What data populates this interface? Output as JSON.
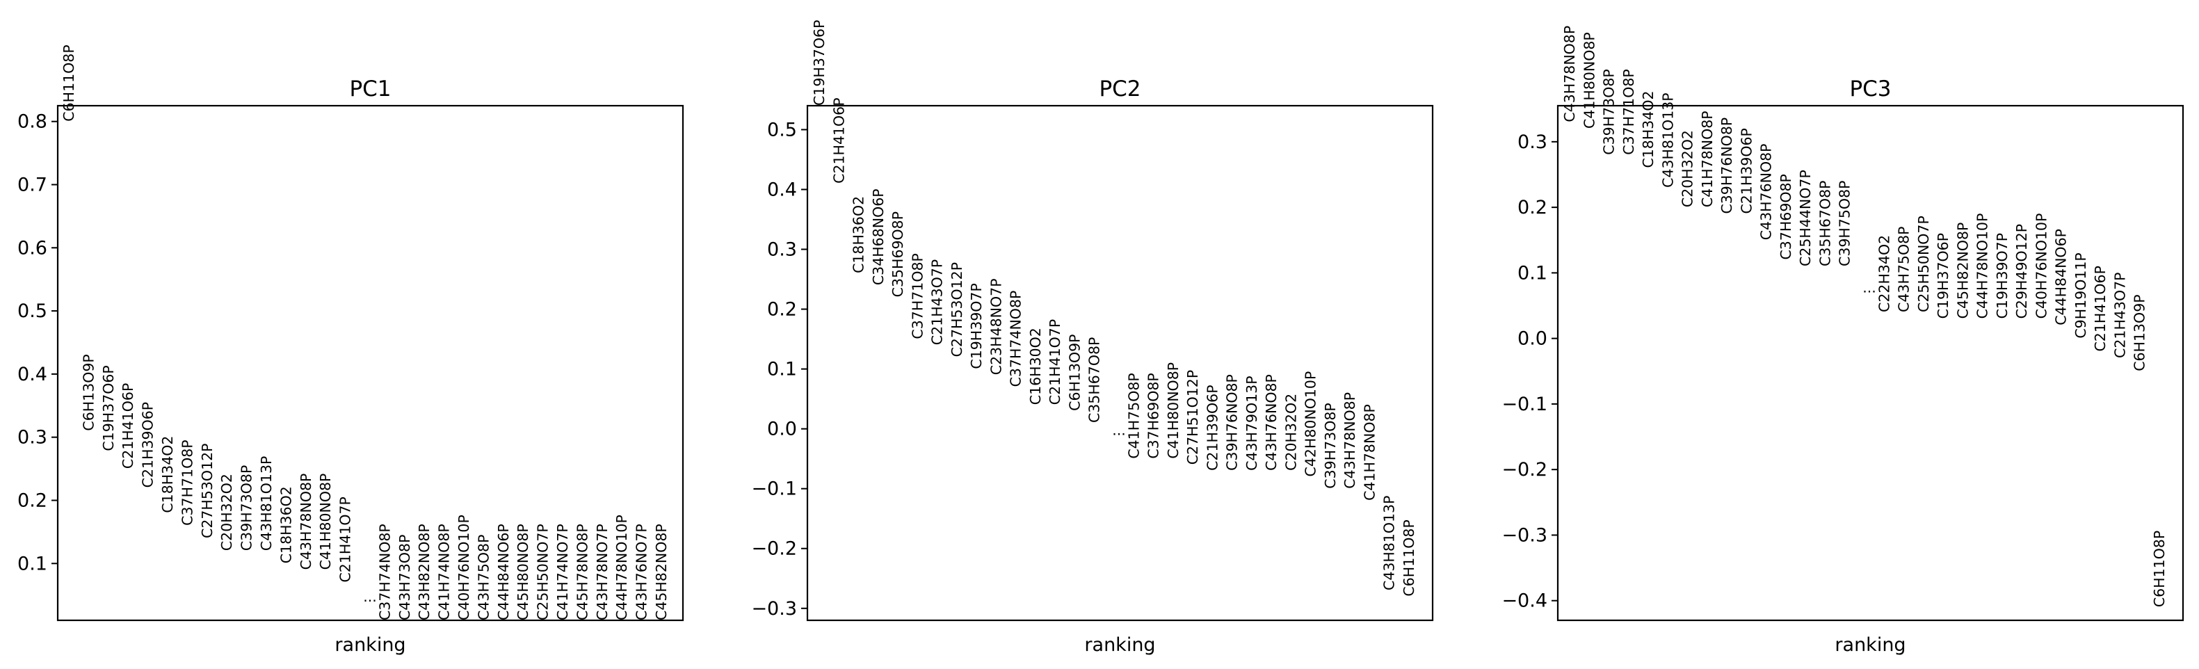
{
  "chart_data": [
    {
      "type": "scatter",
      "title": "PC1",
      "xlabel": "ranking",
      "ylabel": "",
      "ylim": [
        0.01,
        0.825
      ],
      "yticks": [
        0.1,
        0.2,
        0.3,
        0.4,
        0.5,
        0.6,
        0.7,
        0.8
      ],
      "ytick_labels": [
        "0.1",
        "0.2",
        "0.3",
        "0.4",
        "0.5",
        "0.6",
        "0.7",
        "0.8"
      ],
      "ellipsis": "...",
      "ellipsis_y": 0.04,
      "genes": [
        {
          "name": "C6H11O8P",
          "y": 0.8
        },
        {
          "name": "C6H13O9P",
          "y": 0.31
        },
        {
          "name": "C19H37O6P",
          "y": 0.278
        },
        {
          "name": "C21H41O6P",
          "y": 0.25
        },
        {
          "name": "C21H39O6P",
          "y": 0.22
        },
        {
          "name": "C18H34O2",
          "y": 0.18
        },
        {
          "name": "C37H71O8P",
          "y": 0.16
        },
        {
          "name": "C27H53O12P",
          "y": 0.14
        },
        {
          "name": "C20H32O2",
          "y": 0.12
        },
        {
          "name": "C39H73O8P",
          "y": 0.12
        },
        {
          "name": "C43H81O13P",
          "y": 0.12
        },
        {
          "name": "C18H36O2",
          "y": 0.1
        },
        {
          "name": "C43H78NO8P",
          "y": 0.09
        },
        {
          "name": "C41H80NO8P",
          "y": 0.09
        },
        {
          "name": "C21H41O7P",
          "y": 0.07
        },
        {
          "name": "C37H74NO8P",
          "y": 0.01
        },
        {
          "name": "C43H73O8P",
          "y": 0.01
        },
        {
          "name": "C43H82NO8P",
          "y": 0.01
        },
        {
          "name": "C41H74NO8P",
          "y": 0.01
        },
        {
          "name": "C40H76NO10P",
          "y": 0.01
        },
        {
          "name": "C43H75O8P",
          "y": 0.01
        },
        {
          "name": "C44H84NO6P",
          "y": 0.01
        },
        {
          "name": "C45H80NO8P",
          "y": 0.01
        },
        {
          "name": "C25H50NO7P",
          "y": 0.01
        },
        {
          "name": "C41H74NO7P",
          "y": 0.01
        },
        {
          "name": "C45H78NO8P",
          "y": 0.01
        },
        {
          "name": "C43H78NO7P",
          "y": 0.01
        },
        {
          "name": "C44H78NO10P",
          "y": 0.01
        },
        {
          "name": "C43H76NO7P",
          "y": 0.01
        },
        {
          "name": "C45H82NO8P",
          "y": 0.01
        }
      ]
    },
    {
      "type": "scatter",
      "title": "PC2",
      "xlabel": "ranking",
      "ylabel": "",
      "ylim": [
        -0.32,
        0.54
      ],
      "yticks": [
        -0.3,
        -0.2,
        -0.1,
        0.0,
        0.1,
        0.2,
        0.3,
        0.4,
        0.5
      ],
      "ytick_labels": [
        "−0.3",
        "−0.2",
        "−0.1",
        "0.0",
        "0.1",
        "0.2",
        "0.3",
        "0.4",
        "0.5"
      ],
      "ellipsis": "...",
      "ellipsis_y": -0.01,
      "genes": [
        {
          "name": "C19H37O6P",
          "y": 0.54
        },
        {
          "name": "C21H41O6P",
          "y": 0.41
        },
        {
          "name": "C18H36O2",
          "y": 0.26
        },
        {
          "name": "C34H68NO6P",
          "y": 0.24
        },
        {
          "name": "C35H69O8P",
          "y": 0.22
        },
        {
          "name": "C37H71O8P",
          "y": 0.15
        },
        {
          "name": "C21H43O7P",
          "y": 0.14
        },
        {
          "name": "C27H53O12P",
          "y": 0.12
        },
        {
          "name": "C19H39O7P",
          "y": 0.1
        },
        {
          "name": "C23H48NO7P",
          "y": 0.09
        },
        {
          "name": "C37H74NO8P",
          "y": 0.07
        },
        {
          "name": "C16H30O2",
          "y": 0.04
        },
        {
          "name": "C21H41O7P",
          "y": 0.04
        },
        {
          "name": "C6H13O9P",
          "y": 0.03
        },
        {
          "name": "C35H67O8P",
          "y": 0.01
        },
        {
          "name": "C41H75O8P",
          "y": -0.05
        },
        {
          "name": "C37H69O8P",
          "y": -0.05
        },
        {
          "name": "C41H80NO8P",
          "y": -0.05
        },
        {
          "name": "C27H51O12P",
          "y": -0.06
        },
        {
          "name": "C21H39O6P",
          "y": -0.07
        },
        {
          "name": "C39H76NO8P",
          "y": -0.07
        },
        {
          "name": "C43H79O13P",
          "y": -0.07
        },
        {
          "name": "C43H76NO8P",
          "y": -0.07
        },
        {
          "name": "C20H32O2",
          "y": -0.07
        },
        {
          "name": "C42H80NO10P",
          "y": -0.08
        },
        {
          "name": "C39H73O8P",
          "y": -0.1
        },
        {
          "name": "C43H78NO8P",
          "y": -0.1
        },
        {
          "name": "C41H78NO8P",
          "y": -0.12
        },
        {
          "name": "C43H81O13P",
          "y": -0.27
        },
        {
          "name": "C6H11O8P",
          "y": -0.28
        }
      ]
    },
    {
      "type": "scatter",
      "title": "PC3",
      "xlabel": "ranking",
      "ylabel": "",
      "ylim": [
        -0.43,
        0.355
      ],
      "yticks": [
        -0.4,
        -0.3,
        -0.2,
        -0.1,
        0.0,
        0.1,
        0.2,
        0.3
      ],
      "ytick_labels": [
        "−0.4",
        "−0.3",
        "−0.2",
        "−0.1",
        "0.0",
        "0.1",
        "0.2",
        "0.3"
      ],
      "ellipsis": "...",
      "ellipsis_y": 0.07,
      "genes": [
        {
          "name": "C43H78NO8P",
          "y": 0.33
        },
        {
          "name": "C41H80NO8P",
          "y": 0.32
        },
        {
          "name": "C39H73O8P",
          "y": 0.28
        },
        {
          "name": "C37H71O8P",
          "y": 0.28
        },
        {
          "name": "C18H34O2",
          "y": 0.26
        },
        {
          "name": "C43H81O13P",
          "y": 0.23
        },
        {
          "name": "C20H32O2",
          "y": 0.2
        },
        {
          "name": "C41H78NO8P",
          "y": 0.2
        },
        {
          "name": "C39H76NO8P",
          "y": 0.19
        },
        {
          "name": "C21H39O6P",
          "y": 0.19
        },
        {
          "name": "C43H76NO8P",
          "y": 0.15
        },
        {
          "name": "C37H69O8P",
          "y": 0.12
        },
        {
          "name": "C25H44NO7P",
          "y": 0.11
        },
        {
          "name": "C35H67O8P",
          "y": 0.11
        },
        {
          "name": "C39H75O8P",
          "y": 0.11
        },
        {
          "name": "C22H34O2",
          "y": 0.04
        },
        {
          "name": "C43H75O8P",
          "y": 0.04
        },
        {
          "name": "C25H50NO7P",
          "y": 0.04
        },
        {
          "name": "C19H37O6P",
          "y": 0.03
        },
        {
          "name": "C45H82NO8P",
          "y": 0.03
        },
        {
          "name": "C44H78NO10P",
          "y": 0.03
        },
        {
          "name": "C19H39O7P",
          "y": 0.03
        },
        {
          "name": "C29H49O12P",
          "y": 0.03
        },
        {
          "name": "C40H76NO10P",
          "y": 0.03
        },
        {
          "name": "C44H84NO6P",
          "y": 0.02
        },
        {
          "name": "C9H19O11P",
          "y": 0.0
        },
        {
          "name": "C21H41O6P",
          "y": -0.02
        },
        {
          "name": "C21H43O7P",
          "y": -0.03
        },
        {
          "name": "C6H13O9P",
          "y": -0.05
        },
        {
          "name": "C6H11O8P",
          "y": -0.41
        }
      ]
    }
  ]
}
